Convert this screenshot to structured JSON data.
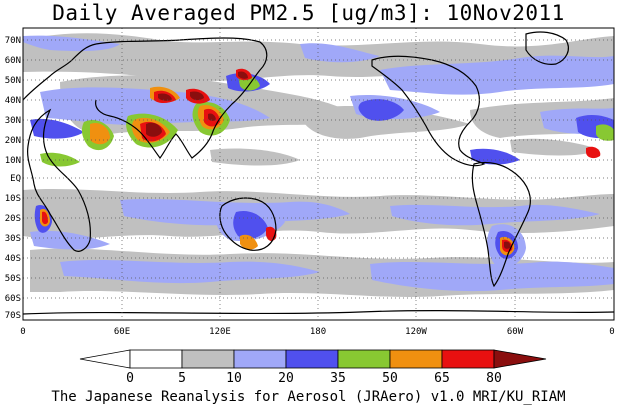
{
  "title": "Daily Averaged PM2.5 [ug/m3]: 10Nov2011",
  "credit": "The Japanese Reanalysis for Aerosol (JRAero) v1.0 MRI/KU_RIAM",
  "map": {
    "lat_labels": [
      "70N",
      "60N",
      "50N",
      "40N",
      "30N",
      "20N",
      "10N",
      "EQ",
      "10S",
      "20S",
      "30S",
      "40S",
      "50S",
      "60S",
      "70S"
    ],
    "lon_labels": [
      "0",
      "60E",
      "120E",
      "180",
      "120W",
      "60W",
      "0"
    ],
    "grid": "dotted"
  },
  "colorbar": {
    "tick_labels": [
      "0",
      "5",
      "10",
      "20",
      "35",
      "50",
      "65",
      "80"
    ],
    "colors": [
      "#ffffff",
      "#c0c0c0",
      "#a0a8f8",
      "#5050ee",
      "#88c832",
      "#f09010",
      "#e81010",
      "#8a0e0e"
    ]
  }
}
